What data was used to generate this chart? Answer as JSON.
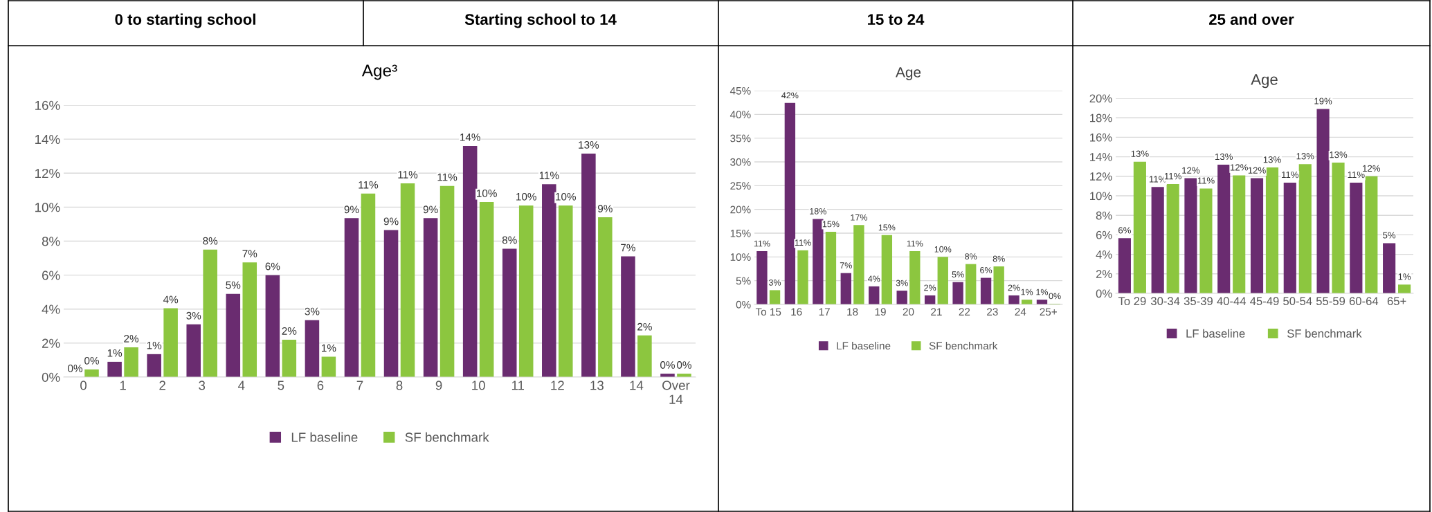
{
  "chart_data": [
    {
      "type": "other",
      "annotations": [
        "0 to starting school",
        "Starting school to 14",
        "15 to 24",
        "25 and over"
      ]
    },
    {
      "type": "bar",
      "title": "Age³",
      "categories": [
        "0",
        "1",
        "2",
        "3",
        "4",
        "5",
        "6",
        "7",
        "8",
        "9",
        "10",
        "11",
        "12",
        "13",
        "14",
        "Over\n14"
      ],
      "series": [
        {
          "name": "LF baseline",
          "color": "#6a2c70",
          "values": [
            0,
            0.9,
            1.35,
            3.1,
            4.9,
            6.0,
            3.35,
            9.35,
            8.65,
            9.35,
            13.6,
            7.55,
            11.35,
            13.15,
            7.1,
            0.2
          ],
          "value_labels": [
            "0%",
            "1%",
            "1%",
            "3%",
            "5%",
            "6%",
            "3%",
            "9%",
            "9%",
            "9%",
            "14%",
            "8%",
            "11%",
            "13%",
            "7%",
            "0%"
          ]
        },
        {
          "name": "SF benchmark",
          "color": "#8cc63f",
          "values": [
            0.45,
            1.75,
            4.05,
            7.5,
            6.75,
            2.2,
            1.2,
            10.8,
            11.4,
            11.25,
            10.3,
            10.1,
            10.1,
            9.4,
            2.45,
            0.2
          ],
          "value_labels": [
            "0%",
            "2%",
            "4%",
            "8%",
            "7%",
            "2%",
            "1%",
            "11%",
            "11%",
            "11%",
            "10%",
            "10%",
            "10%",
            "9%",
            "2%",
            "0%"
          ]
        }
      ],
      "ylim": [
        0,
        16
      ],
      "yticks": [
        {
          "value": 0,
          "label": "0%"
        },
        {
          "value": 2,
          "label": "2%"
        },
        {
          "value": 4,
          "label": "4%"
        },
        {
          "value": 6,
          "label": "6%"
        },
        {
          "value": 8,
          "label": "8%"
        },
        {
          "value": 10,
          "label": "10%"
        },
        {
          "value": 12,
          "label": "12%"
        },
        {
          "value": 14,
          "label": "14%"
        },
        {
          "value": 16,
          "label": "16%"
        }
      ],
      "grid": "y",
      "legend": "bottom"
    },
    {
      "type": "bar",
      "title": "Age",
      "categories": [
        "To 15",
        "16",
        "17",
        "18",
        "19",
        "20",
        "21",
        "22",
        "23",
        "24",
        "25+"
      ],
      "series": [
        {
          "name": "LF baseline",
          "color": "#6a2c70",
          "values": [
            11.2,
            42.4,
            18.0,
            6.6,
            3.8,
            2.9,
            1.9,
            4.7,
            5.6,
            1.9,
            1.0
          ],
          "value_labels": [
            "11%",
            "42%",
            "18%",
            "7%",
            "4%",
            "3%",
            "2%",
            "5%",
            "6%",
            "2%",
            "1%"
          ]
        },
        {
          "name": "SF benchmark",
          "color": "#8cc63f",
          "values": [
            3.0,
            11.4,
            15.3,
            16.7,
            14.6,
            11.2,
            10.0,
            8.5,
            8.0,
            1.0,
            0.15
          ],
          "value_labels": [
            "3%",
            "11%",
            "15%",
            "17%",
            "15%",
            "11%",
            "10%",
            "8%",
            "8%",
            "1%",
            "0%"
          ]
        }
      ],
      "ylim": [
        0,
        45
      ],
      "yticks": [
        {
          "value": 0,
          "label": "0%"
        },
        {
          "value": 5,
          "label": "5%"
        },
        {
          "value": 10,
          "label": "10%"
        },
        {
          "value": 15,
          "label": "15%"
        },
        {
          "value": 20,
          "label": "20%"
        },
        {
          "value": 25,
          "label": "25%"
        },
        {
          "value": 30,
          "label": "30%"
        },
        {
          "value": 35,
          "label": "35%"
        },
        {
          "value": 40,
          "label": "40%"
        },
        {
          "value": 45,
          "label": "45%"
        }
      ],
      "grid": "y",
      "legend": "bottom"
    },
    {
      "type": "bar",
      "title": "Age",
      "categories": [
        "To 29",
        "30-34",
        "35-39",
        "40-44",
        "45-49",
        "50-54",
        "55-59",
        "60-64",
        "65+"
      ],
      "series": [
        {
          "name": "LF baseline",
          "color": "#6a2c70",
          "values": [
            5.65,
            10.9,
            11.8,
            13.2,
            11.8,
            11.35,
            18.9,
            11.35,
            5.15
          ],
          "value_labels": [
            "6%",
            "11%",
            "12%",
            "13%",
            "12%",
            "11%",
            "19%",
            "11%",
            "5%"
          ]
        },
        {
          "name": "SF benchmark",
          "color": "#8cc63f",
          "values": [
            13.5,
            11.2,
            10.75,
            12.1,
            12.9,
            13.25,
            13.4,
            12.0,
            0.9
          ],
          "value_labels": [
            "13%",
            "11%",
            "11%",
            "12%",
            "13%",
            "13%",
            "13%",
            "12%",
            "1%"
          ]
        }
      ],
      "ylim": [
        0,
        20
      ],
      "yticks": [
        {
          "value": 0,
          "label": "0%"
        },
        {
          "value": 2,
          "label": "2%"
        },
        {
          "value": 4,
          "label": "4%"
        },
        {
          "value": 6,
          "label": "6%"
        },
        {
          "value": 8,
          "label": "8%"
        },
        {
          "value": 10,
          "label": "10%"
        },
        {
          "value": 12,
          "label": "12%"
        },
        {
          "value": 14,
          "label": "14%"
        },
        {
          "value": 16,
          "label": "16%"
        },
        {
          "value": 18,
          "label": "18%"
        },
        {
          "value": 20,
          "label": "20%"
        }
      ],
      "grid": "y",
      "legend": "bottom"
    }
  ]
}
